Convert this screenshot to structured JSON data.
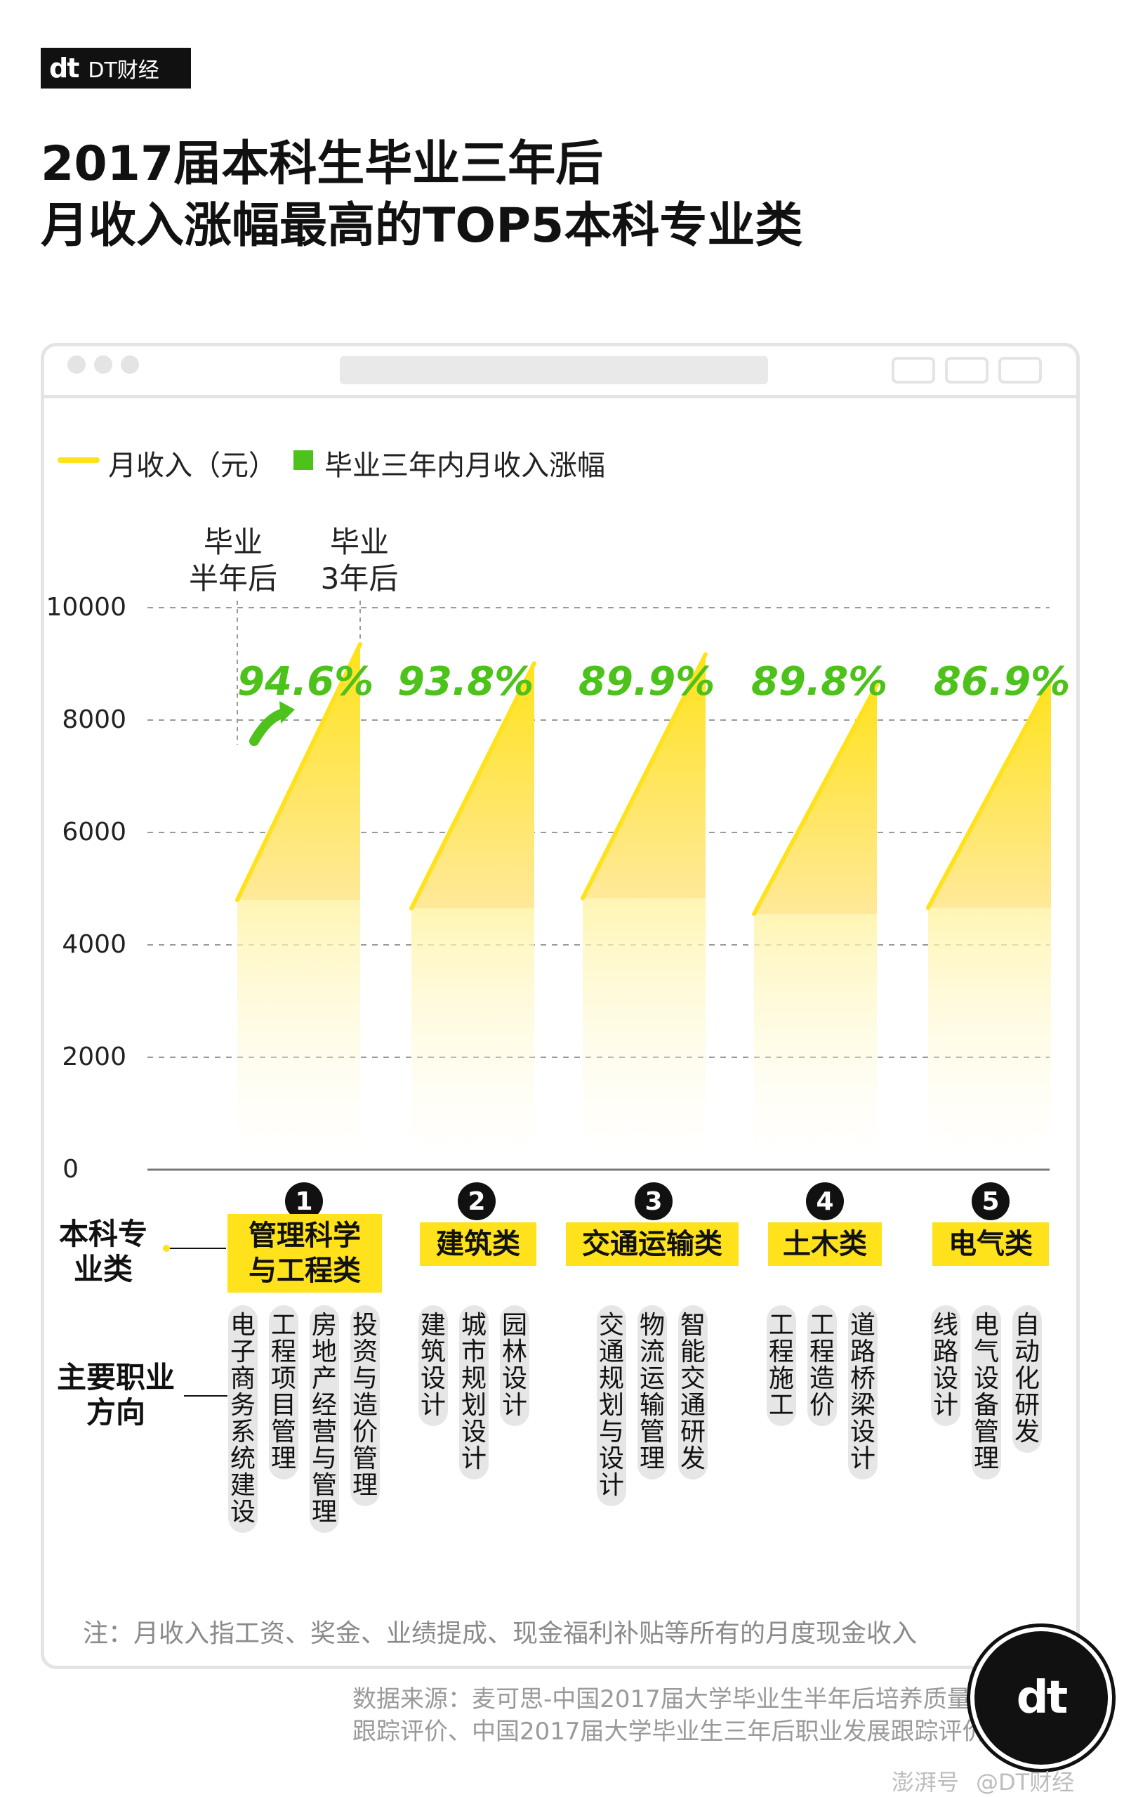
{
  "brand": {
    "logo_mark": "dt",
    "logo_text": "DT财经"
  },
  "title": {
    "line1": "2017届本科生毕业三年后",
    "line2": "月收入涨幅最高的TOP5本科专业类"
  },
  "legend": {
    "income": "月收入（元）",
    "growth": "毕业三年内月收入涨幅"
  },
  "column_headers": {
    "half_year": [
      "毕业",
      "半年后"
    ],
    "three_year": [
      "毕业",
      "3年后"
    ]
  },
  "colors": {
    "income": "#ffe21c",
    "growth": "#4cc21a",
    "text": "#111111"
  },
  "chart_data": {
    "type": "area",
    "title": "2017届本科生毕业三年后月收入涨幅最高的TOP5本科专业类",
    "x": [
      "毕业半年后",
      "毕业3年后"
    ],
    "ylim": [
      0,
      10000
    ],
    "yticks": [
      "10000",
      "8000",
      "6000",
      "4000",
      "2000",
      "0"
    ],
    "grid": true,
    "series": [
      {
        "rank": "1",
        "name": "管理科学与工程类",
        "values": [
          4800,
          9350
        ],
        "growth": "94.6%"
      },
      {
        "rank": "2",
        "name": "建筑类",
        "values": [
          4650,
          9010
        ],
        "growth": "93.8%"
      },
      {
        "rank": "3",
        "name": "交通运输类",
        "values": [
          4830,
          9170
        ],
        "growth": "89.9%"
      },
      {
        "rank": "4",
        "name": "土木类",
        "values": [
          4550,
          8630
        ],
        "growth": "89.8%"
      },
      {
        "rank": "5",
        "name": "电气类",
        "values": [
          4660,
          8710
        ],
        "growth": "86.9%"
      }
    ]
  },
  "row_labels": {
    "major": "本科专业类",
    "career": "主要职业方向"
  },
  "majors": [
    {
      "lines": [
        "管理科学",
        "与工程类"
      ],
      "careers": [
        "电子商务系统建设",
        "工程项目管理",
        "房地产经营与管理",
        "投资与造价管理"
      ]
    },
    {
      "lines": [
        "建筑类"
      ],
      "careers": [
        "建筑设计",
        "城市规划设计",
        "园林设计"
      ]
    },
    {
      "lines": [
        "交通运输类"
      ],
      "careers": [
        "交通规划与设计",
        "物流运输管理",
        "智能交通研发"
      ]
    },
    {
      "lines": [
        "土木类"
      ],
      "careers": [
        "工程施工",
        "工程造价",
        "道路桥梁设计"
      ]
    },
    {
      "lines": [
        "电气类"
      ],
      "careers": [
        "线路设计",
        "电气设备管理",
        "自动化研发"
      ]
    }
  ],
  "note": "注：月收入指工资、奖金、业绩提成、现金福利补贴等所有的月度现金收入",
  "source": {
    "line1": "数据来源：麦可思-中国2017届大学毕业生半年后培养质量",
    "line2": "跟踪评价、中国2017届大学毕业生三年后职业发展跟踪评价"
  },
  "badge": {
    "mark": "dt"
  },
  "footer": {
    "platform": "澎湃号",
    "account": "@DT财经"
  }
}
